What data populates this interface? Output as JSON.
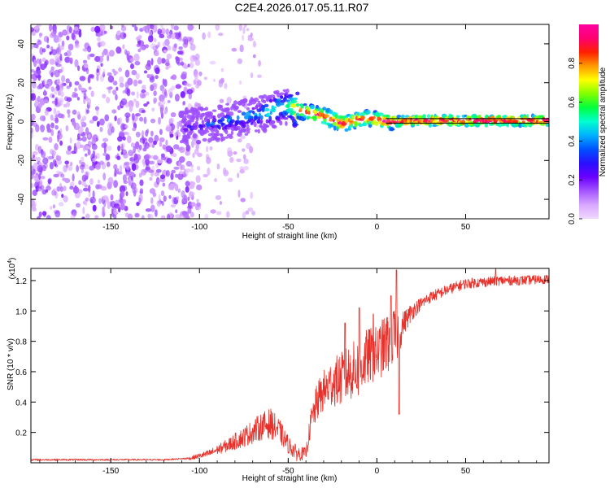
{
  "title": "C2E4.2026.017.05.11.R07",
  "colors": {
    "snr_line": "#e8302a",
    "frame": "#000000",
    "background": "#ffffff",
    "colorbar": [
      "#f0d8ff",
      "#d9a8ff",
      "#a455ff",
      "#6a00ff",
      "#2a10ff",
      "#0050ff",
      "#00b0ff",
      "#00ffd0",
      "#00ff40",
      "#80ff00",
      "#ffff00",
      "#ff9a00",
      "#ff2000",
      "#ff0070",
      "#ff00a0"
    ]
  },
  "chart_data": [
    {
      "type": "heatmap",
      "name": "spectrogram",
      "xlabel": "Height of straight line (km)",
      "ylabel": "Frequency (Hz)",
      "xlim": [
        -195,
        97
      ],
      "ylim": [
        -50,
        50
      ],
      "xticks": [
        -150,
        -100,
        -50,
        0,
        50
      ],
      "xtick_labels": [
        "-150",
        "-100",
        "-50",
        "0",
        "50"
      ],
      "yticks": [
        -40,
        -20,
        0,
        20,
        40
      ],
      "ytick_labels": [
        "-40",
        "-20",
        "0",
        "20",
        "40"
      ],
      "colorbar": {
        "label": "Normalized spectral amplitude",
        "range": [
          0,
          1
        ],
        "ticks": [
          0.0,
          0.2,
          0.4,
          0.6,
          0.8
        ],
        "tick_labels": [
          "0.0",
          "0.2",
          "0.4",
          "0.6",
          "0.8"
        ]
      },
      "ridge": {
        "x": [
          -110,
          -100,
          -90,
          -80,
          -70,
          -60,
          -55,
          -50,
          -45,
          -40,
          -35,
          -30,
          -25,
          -20,
          -15,
          -10,
          -5,
          0,
          5,
          10,
          20,
          40,
          60,
          97
        ],
        "freq": [
          -3,
          -2,
          -1,
          1,
          3,
          5,
          7,
          8,
          6,
          5,
          4,
          3,
          1,
          -1,
          0,
          1,
          2,
          1,
          0,
          0,
          0.5,
          0.5,
          0.5,
          0.5
        ],
        "amplitude": [
          0.25,
          0.3,
          0.35,
          0.4,
          0.45,
          0.5,
          0.55,
          0.55,
          0.85,
          0.9,
          0.9,
          0.9,
          0.92,
          0.95,
          0.9,
          0.9,
          0.85,
          0.9,
          0.95,
          0.95,
          0.97,
          0.98,
          0.98,
          0.98
        ]
      },
      "noise_region": {
        "x_range": [
          -195,
          -105
        ],
        "amplitude": [
          0.05,
          0.2
        ]
      }
    },
    {
      "type": "line",
      "name": "snr",
      "xlabel": "Height of straight line (km)",
      "ylabel": "SNR (10 * v/v)",
      "scale_label": "(x10",
      "scale_exponent": "4",
      "scale_suffix": ")",
      "xlim": [
        -195,
        97
      ],
      "ylim": [
        0,
        1.28
      ],
      "xticks": [
        -150,
        -100,
        -50,
        0,
        50
      ],
      "xtick_labels": [
        "-150",
        "-100",
        "-50",
        "0",
        "50"
      ],
      "yticks": [
        0.2,
        0.4,
        0.6,
        0.8,
        1.0,
        1.2
      ],
      "ytick_labels": [
        "0.2",
        "0.4",
        "0.6",
        "0.8",
        "1.0",
        "1.2"
      ],
      "envelope": {
        "x": [
          -195,
          -120,
          -105,
          -95,
          -85,
          -75,
          -65,
          -60,
          -55,
          -50,
          -45,
          -40,
          -37,
          -33,
          -30,
          -25,
          -20,
          -15,
          -10,
          -5,
          0,
          5,
          10,
          13,
          15,
          20,
          25,
          30,
          40,
          50,
          60,
          70,
          80,
          97
        ],
        "y": [
          0.02,
          0.02,
          0.03,
          0.06,
          0.11,
          0.17,
          0.24,
          0.26,
          0.21,
          0.12,
          0.06,
          0.06,
          0.28,
          0.42,
          0.47,
          0.53,
          0.55,
          0.6,
          0.62,
          0.7,
          0.72,
          0.78,
          0.82,
          0.86,
          0.92,
          1.0,
          1.05,
          1.09,
          1.14,
          1.18,
          1.19,
          1.2,
          1.2,
          1.21
        ]
      },
      "noise_amplitude": {
        "x": [
          -195,
          -110,
          -90,
          -70,
          -60,
          -50,
          -40,
          -35,
          -20,
          -10,
          0,
          10,
          15,
          25,
          40,
          97
        ],
        "y": [
          0.006,
          0.005,
          0.03,
          0.08,
          0.1,
          0.06,
          0.04,
          0.12,
          0.18,
          0.2,
          0.18,
          0.22,
          0.08,
          0.04,
          0.035,
          0.03
        ]
      },
      "spikes": [
        {
          "x": -18,
          "y": 0.92
        },
        {
          "x": -10,
          "y": 1.02
        },
        {
          "x": -2,
          "y": 0.98
        },
        {
          "x": 8,
          "y": 1.1
        },
        {
          "x": 11,
          "y": 1.27
        },
        {
          "x": 12.5,
          "y": 0.32
        },
        {
          "x": 67,
          "y": 1.28
        }
      ]
    }
  ]
}
